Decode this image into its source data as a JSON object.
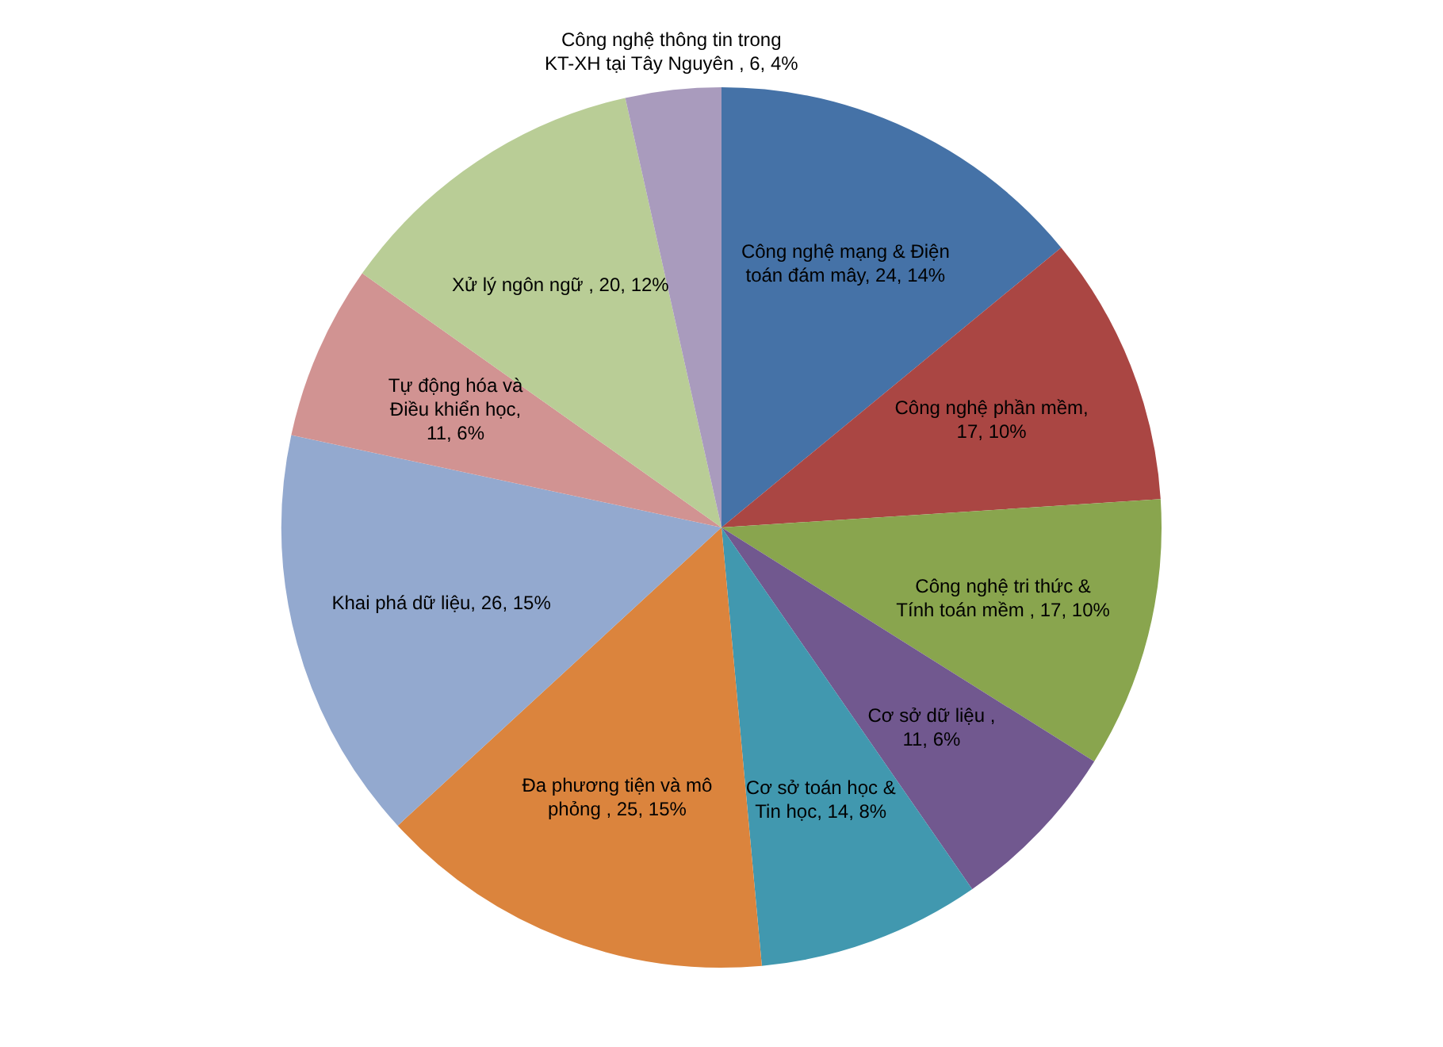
{
  "chart_data": {
    "type": "pie",
    "categories": [
      "Công nghệ mạng & Điện toán đám mây",
      "Công nghệ phần mềm",
      "Công nghệ tri thức & Tính toán mềm ",
      "Cơ sở dữ liệu ",
      "Cơ sở toán học & Tin học",
      "Đa phương tiện và mô phỏng ",
      "Khai phá dữ liệu",
      "Tự động hóa và Điều khiển học",
      "Xử lý ngôn ngữ ",
      "Công nghệ thông tin trong KT-XH tại Tây Nguyên "
    ],
    "values": [
      24,
      17,
      17,
      11,
      14,
      25,
      26,
      11,
      20,
      6
    ],
    "value_labels": [
      ", 24, 14%",
      ", 17, 10%",
      ", 17, 10%",
      ", 11, 6%",
      ", 14, 8%",
      ", 25, 15%",
      ", 26, 15%",
      ", 11, 6%",
      ", 20, 12%",
      ", 6, 4%"
    ],
    "colors": [
      "#4572a7",
      "#aa4643",
      "#89a54e",
      "#71588f",
      "#4198af",
      "#db843d",
      "#93a9cf",
      "#d19392",
      "#b9cd96",
      "#a99bbd"
    ],
    "legend": false
  }
}
